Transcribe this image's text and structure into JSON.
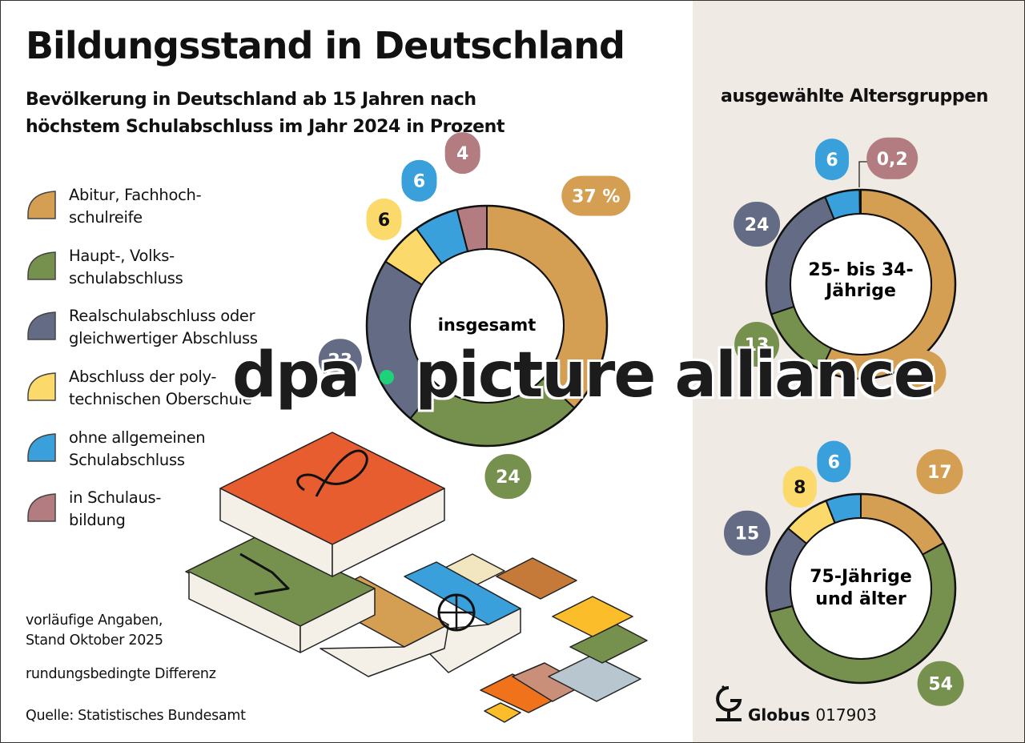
{
  "header": {
    "title": "Bildungsstand in Deutschland",
    "subtitle_line1": "Bevölkerung in Deutschland ab 15 Jahren nach",
    "subtitle_line2": "höchstem Schulabschluss im Jahr 2024 in Prozent",
    "right_heading": "ausgewählte Altersgruppen"
  },
  "legend": [
    {
      "label": "Abitur, Fachhoch-\nschulreife",
      "color": "#d49f53"
    },
    {
      "label": "Haupt-, Volks-\nschulabschluss",
      "color": "#76904d"
    },
    {
      "label": "Realschulabschluss oder\ngleichwertiger Abschluss",
      "color": "#636c84"
    },
    {
      "label": "Abschluss der poly-\ntechnischen Oberschule",
      "color": "#fbd96a"
    },
    {
      "label": "ohne allgemeinen\nSchulabschluss",
      "color": "#39a0db"
    },
    {
      "label": "in Schulaus-\nbildung",
      "color": "#b27c80"
    }
  ],
  "notes": {
    "provisional": "vorläufige Angaben,\nStand Oktober 2025",
    "rounding": "rundungsbedingte Differenz",
    "source": "Quelle: Statistisches Bundesamt"
  },
  "footer": {
    "brand": "Globus",
    "number": "017903"
  },
  "watermark": {
    "left": "dpa",
    "right": "picture alliance"
  },
  "chart_data": [
    {
      "type": "pie",
      "variant": "donut",
      "title": "insgesamt",
      "unit": "%",
      "categories": [
        "Abitur, Fachhochschulreife",
        "Haupt-, Volksschulabschluss",
        "Realschulabschluss oder gleichwertiger Abschluss",
        "Abschluss der polytechnischen Oberschule",
        "ohne allgemeinen Schulabschluss",
        "in Schulausbildung"
      ],
      "values": [
        37,
        24,
        23,
        6,
        6,
        4
      ],
      "labels": [
        "37 %",
        "24",
        "23",
        "6",
        "6",
        "4"
      ]
    },
    {
      "type": "pie",
      "variant": "donut",
      "title": "25- bis 34-\nJährige",
      "title_line1": "25- bis 34-",
      "title_line2": "Jährige",
      "unit": "%",
      "categories": [
        "Abitur, Fachhochschulreife",
        "Haupt-, Volksschulabschluss",
        "Realschulabschluss oder gleichwertiger Abschluss",
        "Abschluss der polytechnischen Oberschule",
        "ohne allgemeinen Schulabschluss",
        "in Schulausbildung"
      ],
      "values": [
        57,
        13,
        24,
        0,
        6,
        0.2
      ],
      "labels": [
        "57",
        "13",
        "24",
        "",
        "6",
        "0,2"
      ]
    },
    {
      "type": "pie",
      "variant": "donut",
      "title": "75-Jährige\nund älter",
      "title_line1": "75-Jährige",
      "title_line2": "und älter",
      "unit": "%",
      "categories": [
        "Abitur, Fachhochschulreife",
        "Haupt-, Volksschulabschluss",
        "Realschulabschluss oder gleichwertiger Abschluss",
        "Abschluss der polytechnischen Oberschule",
        "ohne allgemeinen Schulabschluss",
        "in Schulausbildung"
      ],
      "values": [
        17,
        54,
        15,
        8,
        6,
        0
      ],
      "labels": [
        "17",
        "54",
        "15",
        "8",
        "6",
        ""
      ]
    }
  ]
}
